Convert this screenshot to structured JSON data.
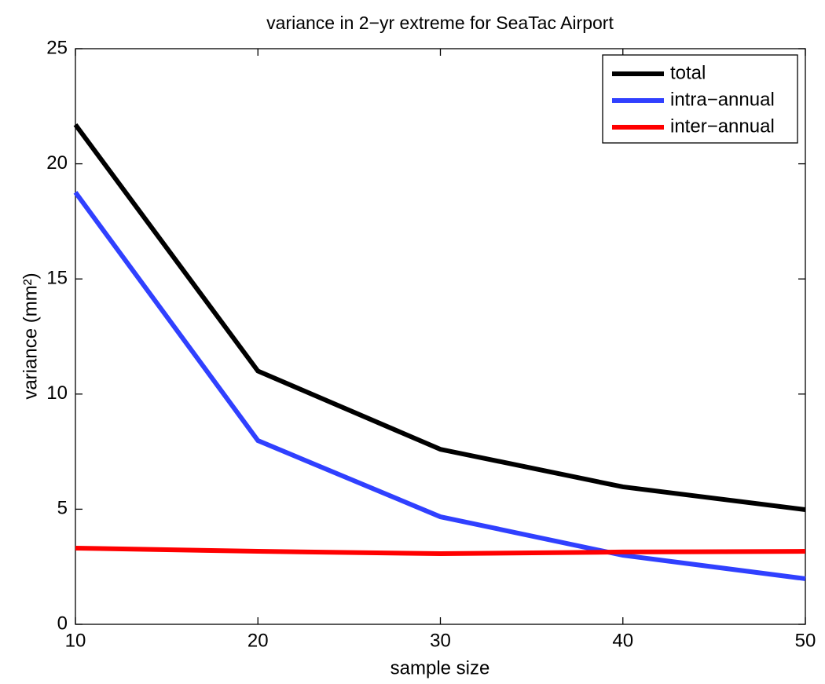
{
  "chart_data": {
    "type": "line",
    "title": "variance in 2−yr extreme for SeaTac Airport",
    "x_label": "sample size",
    "y_label": "variance (mm²)",
    "x": [
      10,
      20,
      30,
      40,
      50
    ],
    "series": [
      {
        "name": "total",
        "color": "#000000",
        "values": [
          21.7,
          11.0,
          7.6,
          5.97,
          4.98
        ]
      },
      {
        "name": "intra−annual",
        "color": "#3040ff",
        "values": [
          18.76,
          7.98,
          4.67,
          3.0,
          1.98
        ]
      },
      {
        "name": "inter−annual",
        "color": "#ff0000",
        "values": [
          3.31,
          3.17,
          3.07,
          3.14,
          3.17
        ]
      }
    ],
    "xlim": [
      10,
      50
    ],
    "xticks": [
      10,
      20,
      30,
      40,
      50
    ],
    "ylim": [
      0,
      25
    ],
    "yticks": [
      0,
      5,
      10,
      15,
      20,
      25
    ],
    "grid": false,
    "legend": "northeast"
  }
}
